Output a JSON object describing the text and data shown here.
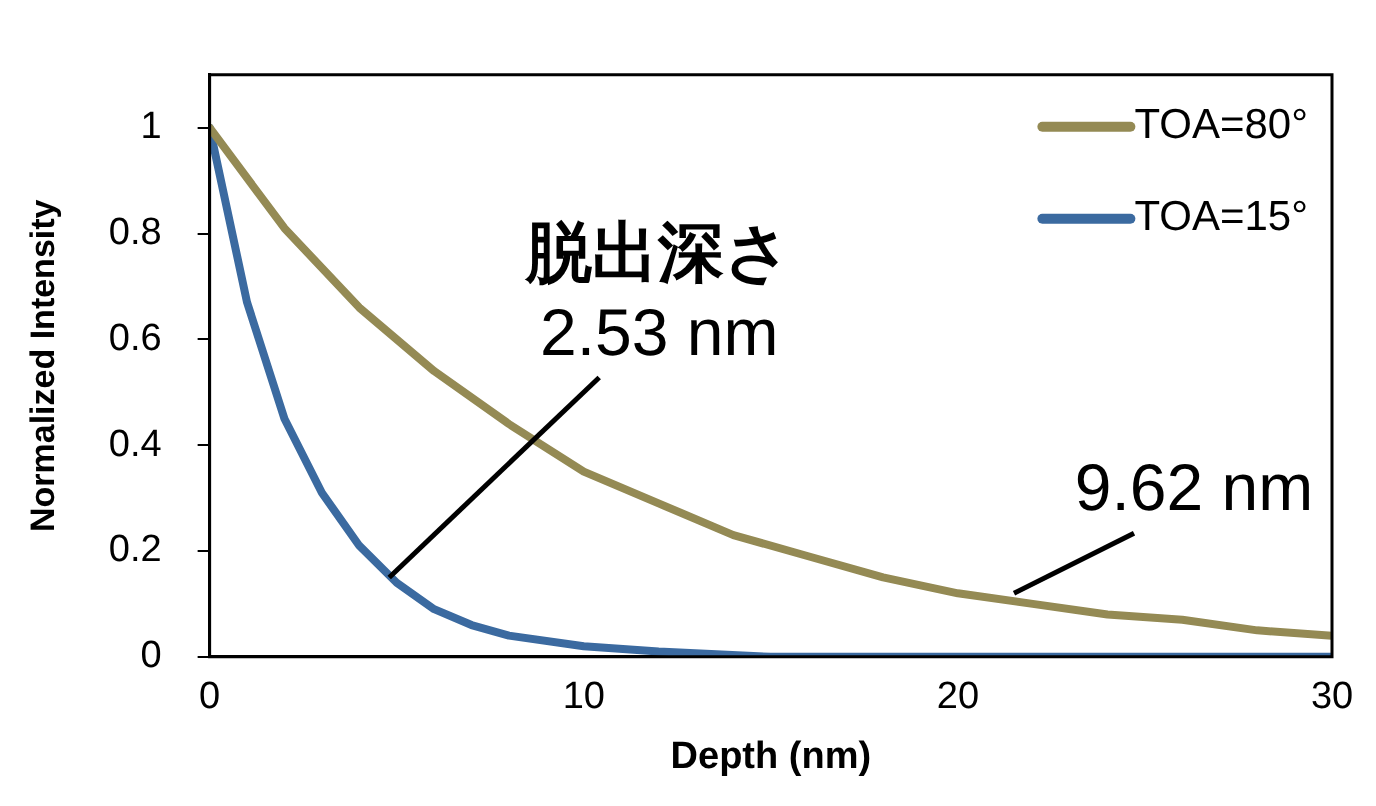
{
  "chart_data": {
    "type": "line",
    "xlabel": "Depth (nm)",
    "ylabel": "Normalized Intensity",
    "xlim": [
      0,
      30
    ],
    "xticks": [
      0,
      10,
      20,
      30
    ],
    "ylim": [
      0,
      1.1
    ],
    "yticks": [
      0,
      0.2,
      0.4,
      0.6,
      0.8,
      1
    ],
    "grid": false,
    "legend": "top right",
    "marker": "none",
    "line_style": "solid",
    "series": [
      {
        "name": "TOA=80°",
        "color": "#948a54",
        "x": [
          0,
          2,
          4,
          6,
          8,
          10,
          12,
          14,
          16,
          18,
          20,
          22,
          24,
          26,
          28,
          30
        ],
        "values": [
          1,
          0.81,
          0.66,
          0.54,
          0.44,
          0.35,
          0.29,
          0.23,
          0.19,
          0.15,
          0.12,
          0.1,
          0.08,
          0.07,
          0.05,
          0.04
        ]
      },
      {
        "name": "TOA=15°",
        "color": "#3b6aa0",
        "x": [
          0,
          1,
          2,
          3,
          4,
          5,
          6,
          7,
          8,
          10,
          12,
          15,
          20,
          30
        ],
        "values": [
          1,
          0.67,
          0.45,
          0.31,
          0.21,
          0.14,
          0.09,
          0.06,
          0.04,
          0.02,
          0.01,
          0,
          0,
          0
        ]
      }
    ],
    "annotations": [
      "脱出深さ",
      {
        "text": "2.53 nm",
        "x": 4.8,
        "y": 0.15
      },
      {
        "text": "9.62 nm",
        "x": 21.5,
        "y": 0.12
      }
    ]
  }
}
